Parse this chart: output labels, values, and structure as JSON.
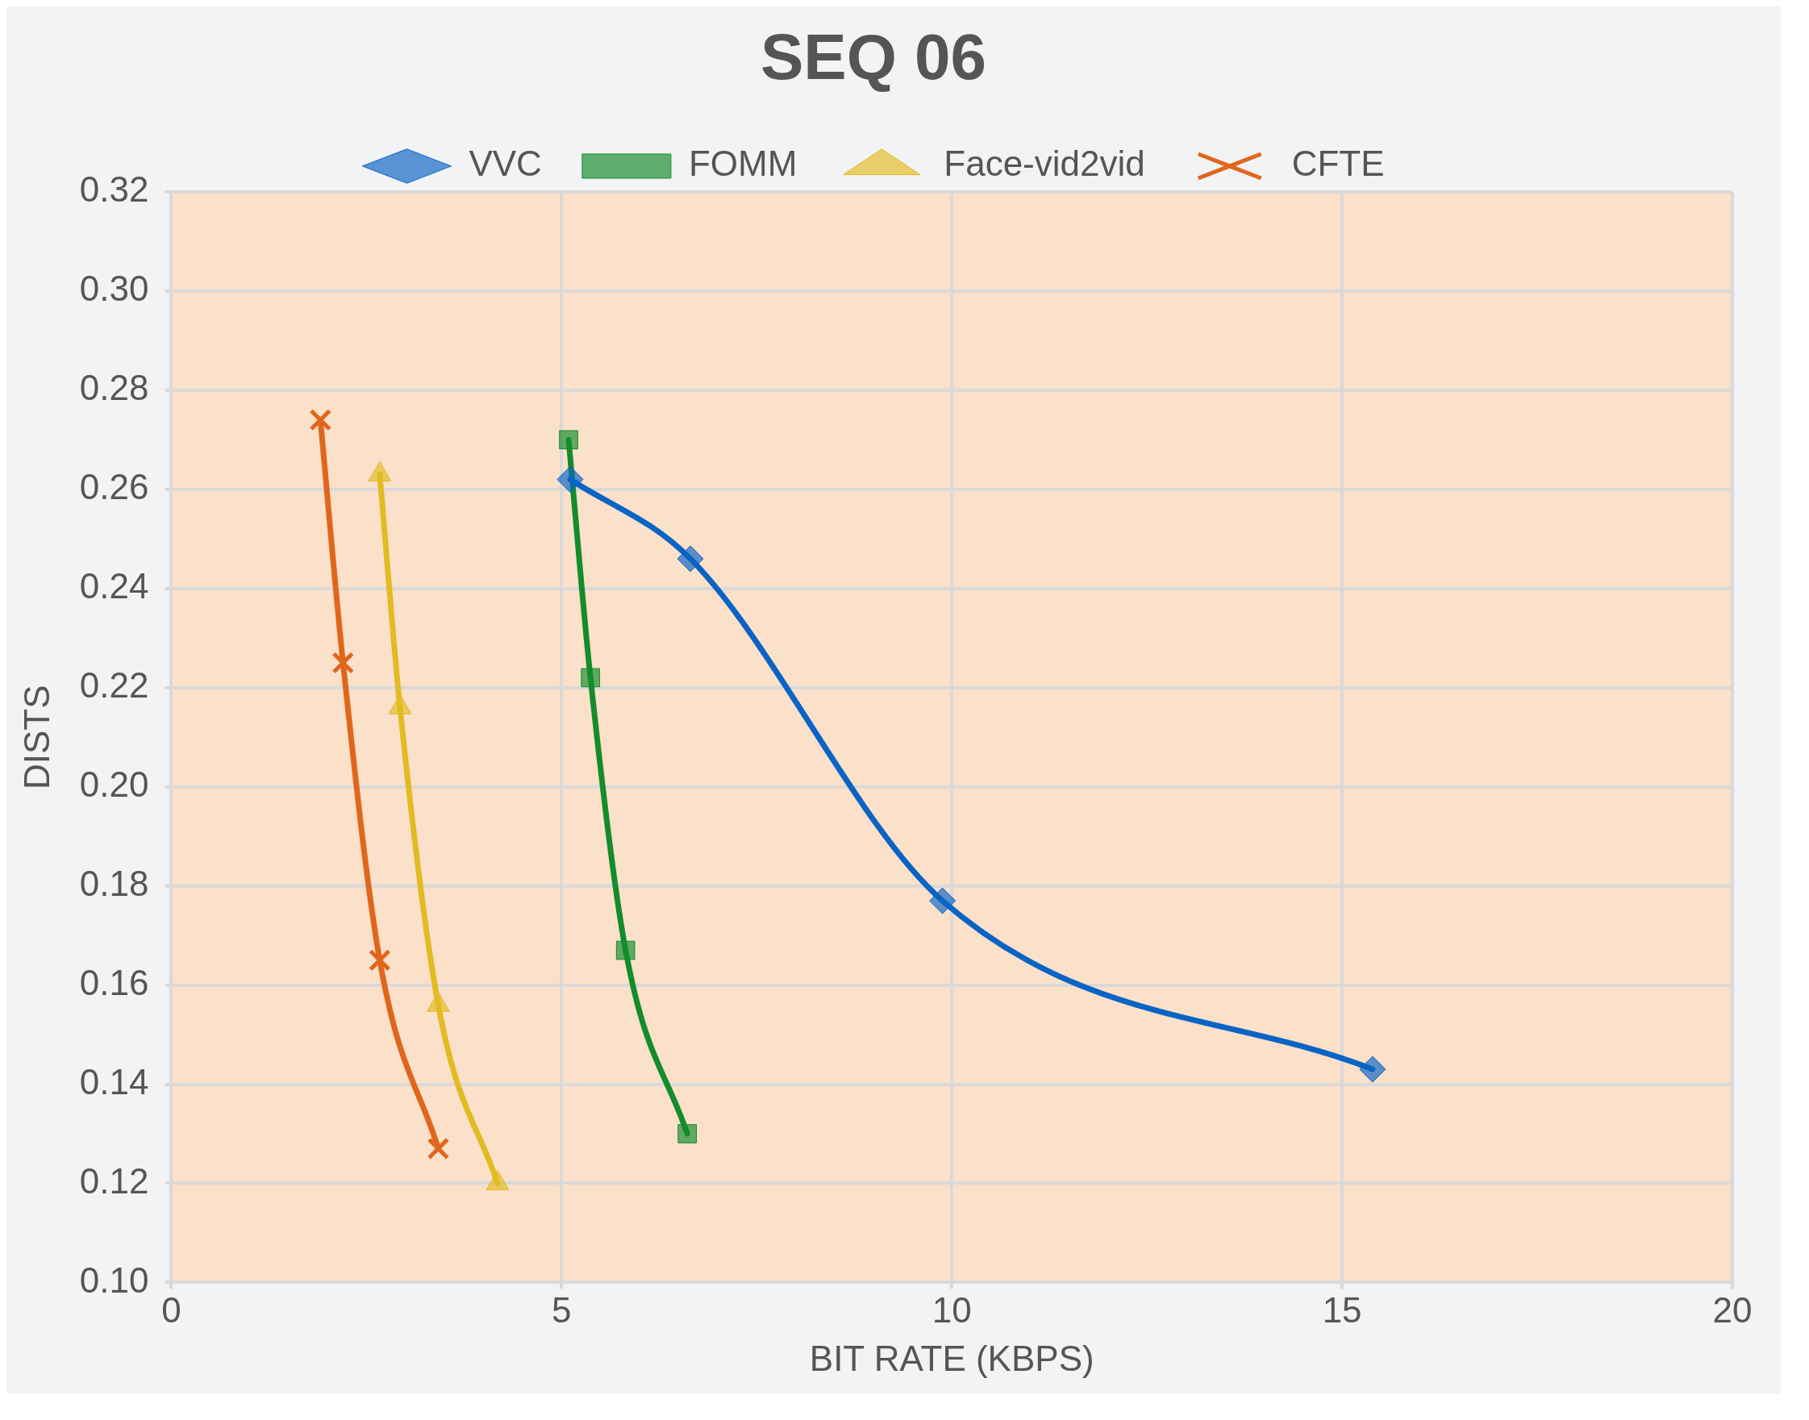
{
  "chart_data": {
    "type": "line",
    "title": "SEQ 06",
    "xlabel": "BIT RATE (KBPS)",
    "ylabel": "DISTS",
    "xlim": [
      0,
      20
    ],
    "xticks": [
      0,
      5,
      10,
      15,
      20
    ],
    "ylim": [
      0.1,
      0.32
    ],
    "yticks": [
      {
        "value": 0.1,
        "label": "0.10"
      },
      0.12,
      0.14,
      0.16,
      0.18,
      {
        "value": 0.2,
        "label": "0.20"
      },
      0.22,
      0.24,
      0.26,
      0.28,
      {
        "value": 0.3,
        "label": "0.30"
      },
      0.32
    ],
    "grid": true,
    "legend": "top",
    "series": [
      {
        "name": "VVC",
        "color": "#0a64c4",
        "marker": "diamond",
        "x": [
          5.11,
          6.65,
          9.88,
          15.39
        ],
        "values": [
          0.262,
          0.246,
          0.177,
          0.143
        ]
      },
      {
        "name": "FOMM",
        "color": "#138c2c",
        "marker": "square",
        "x": [
          5.09,
          5.37,
          5.82,
          6.61
        ],
        "values": [
          0.27,
          0.222,
          0.167,
          0.13
        ]
      },
      {
        "name": "Face-vid2vid",
        "color": "#e2bb22",
        "marker": "triangle",
        "x": [
          2.67,
          2.93,
          3.42,
          4.18
        ],
        "values": [
          0.263,
          0.216,
          0.156,
          0.12
        ]
      },
      {
        "name": "CFTE",
        "color": "#e0661c",
        "marker": "cross",
        "x": [
          1.91,
          2.2,
          2.67,
          3.42
        ],
        "values": [
          0.274,
          0.225,
          0.165,
          0.127
        ]
      }
    ]
  }
}
